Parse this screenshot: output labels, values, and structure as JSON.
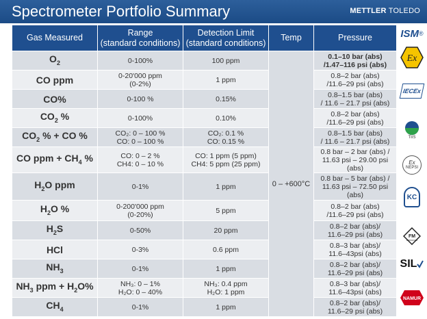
{
  "header": {
    "title": "Spectrometer Portfolio Summary",
    "brand_a": "METTLER",
    "brand_b": " TOLEDO"
  },
  "table": {
    "columns": [
      "Gas Measured",
      "Range (standard conditions)",
      "Detection Limit (standard conditions)",
      "Temp",
      "Pressure"
    ],
    "column_lines": {
      "range": [
        "Range",
        "(standard conditions)"
      ],
      "detection": [
        "Detection Limit",
        "(standard conditions)"
      ]
    },
    "temp_value": "0 – +600°C",
    "rows": [
      {
        "gas": [
          "O",
          "2",
          ""
        ],
        "range": [
          "0-100%"
        ],
        "detection": [
          "100 ppm"
        ],
        "pressure": [
          "0.1–10 bar (abs)",
          "/1.47–116 psi (abs)"
        ],
        "pressure_bold": true
      },
      {
        "gas": [
          "CO ppm"
        ],
        "range": [
          "0-20'000 ppm",
          "(0-2%)"
        ],
        "detection": [
          "1 ppm"
        ],
        "pressure": [
          "0.8–2 bar (abs)",
          "/11.6–29 psi (abs)"
        ]
      },
      {
        "gas": [
          "CO%"
        ],
        "range": [
          "0-100 %"
        ],
        "detection": [
          "0.15%"
        ],
        "pressure": [
          "0.8–1.5 bar (abs)",
          "/ 11.6 – 21.7 psi (abs)"
        ]
      },
      {
        "gas": [
          "CO",
          "2",
          " %"
        ],
        "range": [
          "0-100%"
        ],
        "detection": [
          "0.10%"
        ],
        "pressure": [
          "0.8–2 bar (abs)",
          "/11.6–29 psi (abs)"
        ]
      },
      {
        "gas": [
          "CO",
          "2",
          " % + CO %"
        ],
        "range": [
          "CO₂: 0 – 100 %",
          "CO: 0 – 100 %"
        ],
        "detection": [
          "CO₂: 0.1 %",
          "CO: 0.15 %"
        ],
        "pressure": [
          "0.8–1.5 bar (abs)",
          "/ 11.6 – 21.7 psi (abs)"
        ]
      },
      {
        "gas": [
          "CO ppm + CH",
          "4",
          " %"
        ],
        "range": [
          "CO: 0 – 2 %",
          "CH4: 0 – 10 %"
        ],
        "detection": [
          "CO: 1 ppm (5 ppm)",
          "CH4: 5 ppm (25 ppm)"
        ],
        "pressure": [
          "0.8 bar – 2 bar (abs) /",
          "11.63 psi – 29.00 psi",
          "(abs)"
        ]
      },
      {
        "gas": [
          "H",
          "2",
          "O ppm"
        ],
        "range": [
          "0-1%"
        ],
        "detection": [
          "1 ppm"
        ],
        "pressure": [
          "0.8 bar – 5 bar (abs) /",
          "11.63 psi – 72.50 psi",
          "(abs)"
        ]
      },
      {
        "gas": [
          "H",
          "2",
          "O %"
        ],
        "range": [
          "0-200'000 ppm",
          "(0-20%)"
        ],
        "detection": [
          "5 ppm"
        ],
        "pressure": [
          "0.8–2 bar (abs)",
          "/11.6–29 psi (abs)"
        ]
      },
      {
        "gas": [
          "H",
          "2",
          "S"
        ],
        "range": [
          "0-50%"
        ],
        "detection": [
          "20 ppm"
        ],
        "pressure": [
          "0.8–2 bar (abs)/",
          "11.6–29 psi (abs)"
        ]
      },
      {
        "gas": [
          "HCl"
        ],
        "range": [
          "0-3%"
        ],
        "detection": [
          "0.6 ppm"
        ],
        "pressure": [
          "0.8–3 bar (abs)/",
          "11.6–43psi (abs)"
        ]
      },
      {
        "gas": [
          "NH",
          "3",
          ""
        ],
        "range": [
          "0-1%"
        ],
        "detection": [
          "1 ppm"
        ],
        "pressure": [
          "0.8–2 bar (abs)/",
          "11.6–29 psi (abs)"
        ]
      },
      {
        "gas": [
          "NH",
          "3",
          " ppm + H",
          "2",
          "O%"
        ],
        "range": [
          "NH₃: 0 – 1%",
          "H₂O: 0 – 40%"
        ],
        "detection": [
          "NH₃: 0.4 ppm",
          "H₂O: 1 ppm"
        ],
        "pressure": [
          "0.8–3 bar (abs)/",
          "11.6–43psi (abs)"
        ]
      },
      {
        "gas": [
          "CH",
          "4",
          ""
        ],
        "range": [
          "0-1%"
        ],
        "detection": [
          "1 ppm"
        ],
        "pressure": [
          "0.8–2 bar (abs)/",
          "11.6–29 psi (abs)"
        ]
      }
    ]
  },
  "logos": {
    "ism": "ISM",
    "ex": "Ex",
    "iecex": "IECEx",
    "tiis": "TIIS",
    "nepsi_a": "Ex",
    "nepsi_b": "NEPSI",
    "kc": "KC",
    "fm_a": "FM",
    "fm_b": "APPROVED",
    "sil": "SIL",
    "namur": "NAMUR"
  },
  "colors": {
    "header_blue": "#1f4f8f",
    "row_dark": "#d9dde3",
    "row_light": "#eceef1",
    "ex_yellow": "#f5c400",
    "namur_red": "#d0021b"
  }
}
